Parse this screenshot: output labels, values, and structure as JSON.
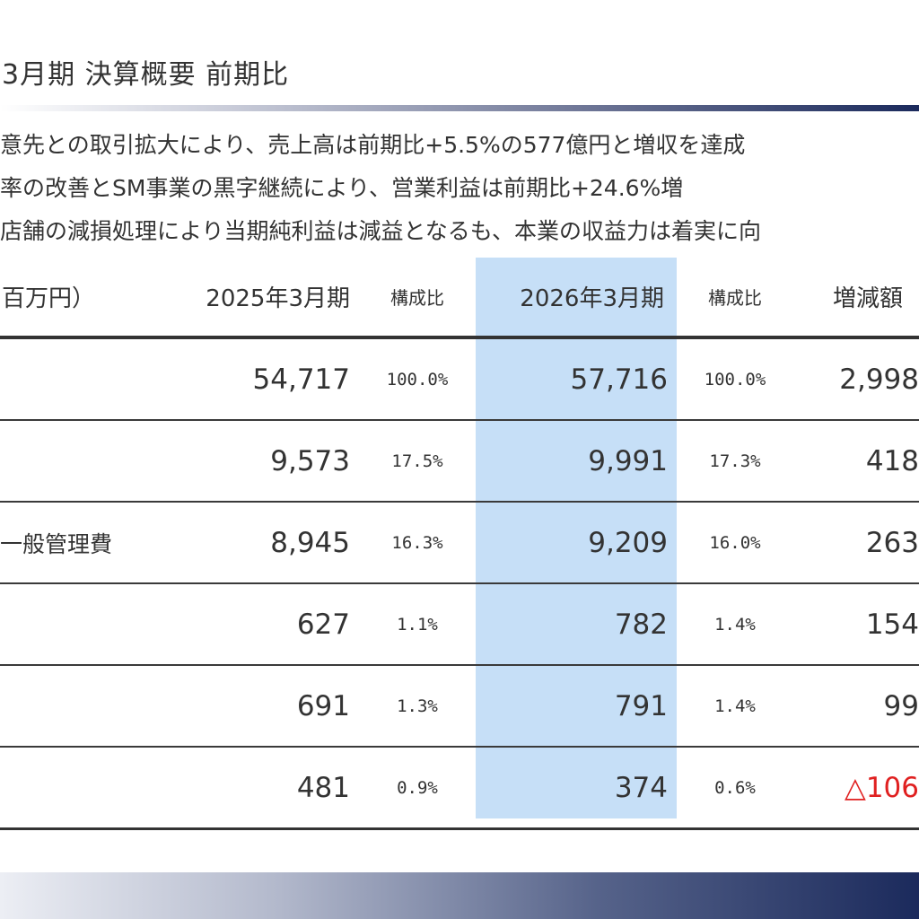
{
  "title": "3月期 決算概要 前期比",
  "summary": [
    "意先との取引拡大により、売上高は前期比+5.5%の577億円と増収を達成",
    "率の改善とSM事業の黒字継続により、営業利益は前期比+24.6%増",
    "店舗の減損処理により当期純利益は減益となるも、本業の収益力は着実に向"
  ],
  "table": {
    "headers": {
      "label": "百万円）",
      "fy2025": "2025年3月期",
      "ratio2025": "構成比",
      "fy2026": "2026年3月期",
      "ratio2026": "構成比",
      "change": "増減額"
    },
    "rows": [
      {
        "label": "",
        "fy2025": "54,717",
        "ratio2025": "100.0%",
        "fy2026": "57,716",
        "ratio2026": "100.0%",
        "change": "2,998"
      },
      {
        "label": "",
        "fy2025": "9,573",
        "ratio2025": "17.5%",
        "fy2026": "9,991",
        "ratio2026": "17.3%",
        "change": "418"
      },
      {
        "label": "一般管理費",
        "fy2025": "8,945",
        "ratio2025": "16.3%",
        "fy2026": "9,209",
        "ratio2026": "16.0%",
        "change": "263"
      },
      {
        "label": "",
        "fy2025": "627",
        "ratio2025": "1.1%",
        "fy2026": "782",
        "ratio2026": "1.4%",
        "change": "154"
      },
      {
        "label": "",
        "fy2025": "691",
        "ratio2025": "1.3%",
        "fy2026": "791",
        "ratio2026": "1.4%",
        "change": "99"
      },
      {
        "label": "",
        "fy2025": "481",
        "ratio2025": "0.9%",
        "fy2026": "374",
        "ratio2026": "0.6%",
        "change": "△106"
      }
    ]
  },
  "colors": {
    "highlight_column": "#c6dff7",
    "negative": "#e02020",
    "accent_navy": "#1b2a5c"
  }
}
